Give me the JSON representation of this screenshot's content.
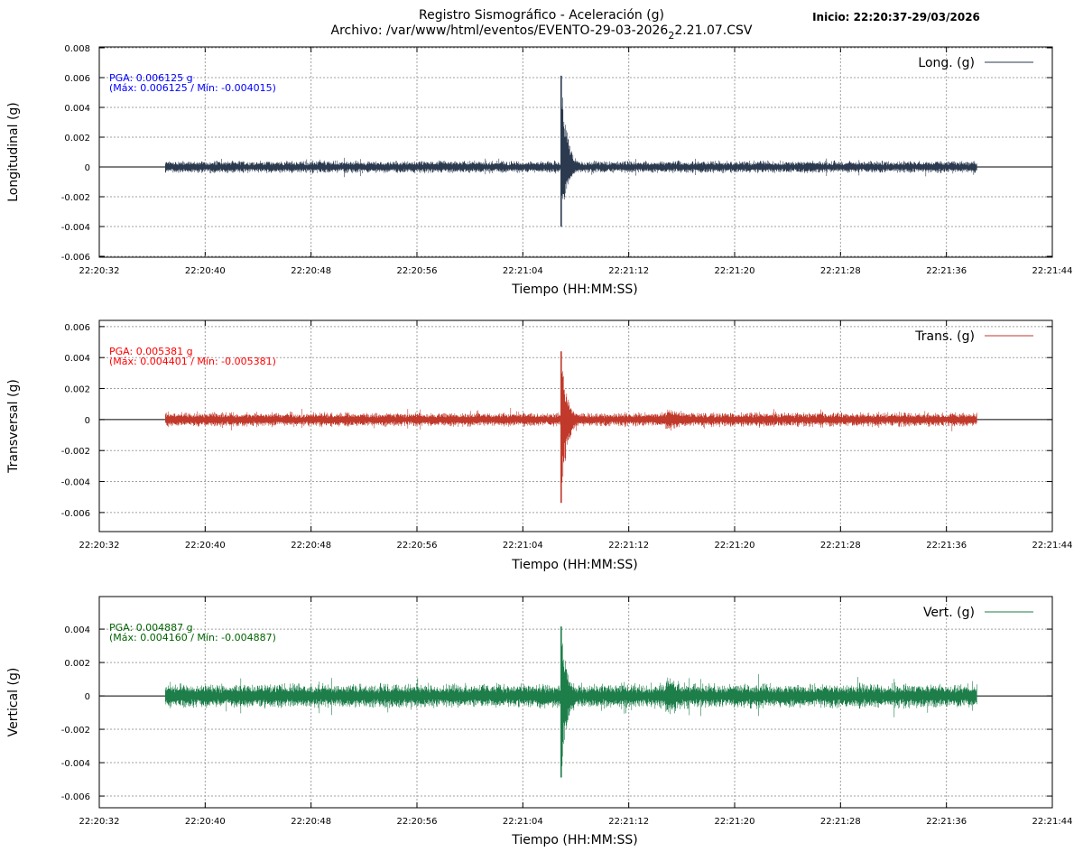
{
  "header": {
    "title_line1": "Registro Sismográfico - Aceleración (g)",
    "title_line2_prefix": "Archivo: /var/www/html/eventos/EVENTO-29-03-2026",
    "title_line2_sub": "2",
    "title_line2_suffix": "2.21.07.CSV",
    "start_label": "Inicio: 22:20:37-29/03/2026"
  },
  "chart_data": [
    {
      "type": "line",
      "ylabel": "Longitudinal (g)",
      "xlabel": "Tiempo (HH:MM:SS)",
      "legend": "Long. (g)",
      "legend_position": "top-right",
      "color": "#2b3a4f",
      "annotation_color": "#0000ff",
      "annotation_pga": "PGA: 0.006125 g",
      "annotation_range": "(Máx: 0.006125 / Mín: -0.004015)",
      "pga": 0.006125,
      "max": 0.006125,
      "min": -0.004015,
      "noise": 0.00045,
      "ylim": [
        -0.00606,
        0.00806
      ],
      "yticks": [
        "0.008",
        "0.006",
        "0.004",
        "0.002",
        "0",
        "-0.002",
        "-0.004",
        "-0.006"
      ],
      "ytick_values": [
        0.008,
        0.006,
        0.004,
        0.002,
        0,
        -0.002,
        -0.004,
        -0.006
      ],
      "bumps": []
    },
    {
      "type": "line",
      "ylabel": "Transversal (g)",
      "xlabel": "Tiempo (HH:MM:SS)",
      "legend": "Trans. (g)",
      "legend_position": "top-right",
      "color": "#c0392b",
      "annotation_color": "#ff0000",
      "annotation_pga": "PGA: 0.005381 g",
      "annotation_range": "(Máx: 0.004401 / Mín: -0.005381)",
      "pga": 0.005381,
      "max": 0.004401,
      "min": -0.005381,
      "noise": 0.0005,
      "ylim": [
        -0.00723,
        0.0064
      ],
      "yticks": [
        "0.006",
        "0.004",
        "0.002",
        "0",
        "-0.002",
        "-0.004",
        "-0.006"
      ],
      "ytick_values": [
        0.006,
        0.004,
        0.002,
        0,
        -0.002,
        -0.004,
        -0.006
      ],
      "bumps": [
        43.1
      ]
    },
    {
      "type": "line",
      "ylabel": "Vertical (g)",
      "xlabel": "Tiempo (HH:MM:SS)",
      "legend": "Vert. (g)",
      "legend_position": "top-right",
      "color": "#1e7e4a",
      "annotation_color": "#006400",
      "annotation_pga": "PGA: 0.004887 g",
      "annotation_range": "(Máx: 0.004160 / Mín: -0.004887)",
      "pga": 0.004887,
      "max": 0.00416,
      "min": -0.004887,
      "noise": 0.0008,
      "ylim": [
        -0.0067,
        0.00595
      ],
      "yticks": [
        "0.004",
        "0.002",
        "0",
        "-0.002",
        "-0.004",
        "-0.006"
      ],
      "ytick_values": [
        0.004,
        0.002,
        0,
        -0.002,
        -0.004,
        -0.006
      ],
      "bumps": [
        43.1
      ]
    }
  ],
  "x_axis": {
    "ticks": [
      "22:20:32",
      "22:20:40",
      "22:20:48",
      "22:20:56",
      "22:21:04",
      "22:21:12",
      "22:21:20",
      "22:21:28",
      "22:21:36",
      "22:21:44"
    ],
    "range_seconds": [
      0,
      72
    ],
    "tick_step_seconds": 8,
    "data_start_seconds": 5,
    "data_end_seconds": 66.3,
    "event_seconds": 34.9
  }
}
